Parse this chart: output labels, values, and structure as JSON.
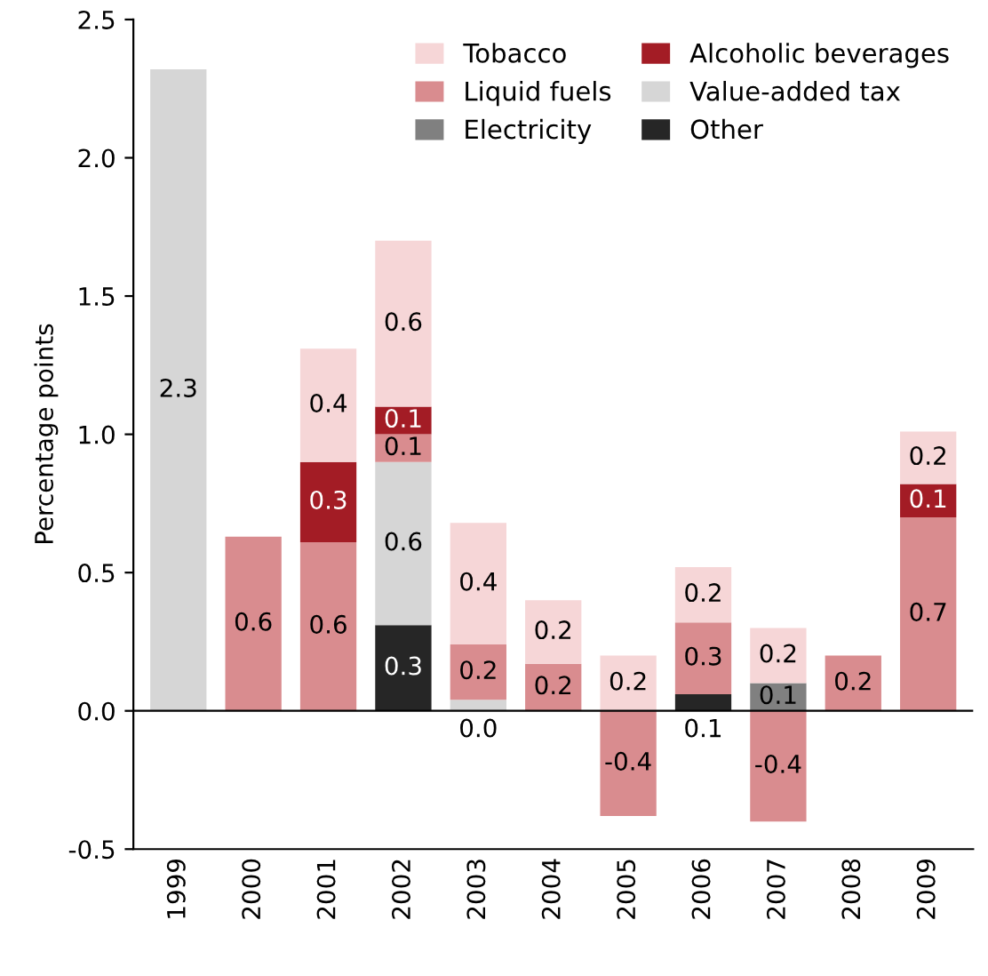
{
  "chart_data": {
    "type": "bar",
    "stacked": true,
    "ylabel": "Percentage points",
    "categories": [
      "1999",
      "2000",
      "2001",
      "2002",
      "2003",
      "2004",
      "2005",
      "2006",
      "2007",
      "2008",
      "2009"
    ],
    "ylim": [
      -0.5,
      2.5
    ],
    "yticks": [
      {
        "value": -0.5,
        "label": "-0.5"
      },
      {
        "value": 0,
        "label": "0.0"
      },
      {
        "value": 0.5,
        "label": "0.5"
      },
      {
        "value": 1,
        "label": "1.0"
      },
      {
        "value": 1.5,
        "label": "1.5"
      },
      {
        "value": 2,
        "label": "2.0"
      },
      {
        "value": 2.5,
        "label": "2.5"
      }
    ],
    "legend": "top right",
    "grid": false,
    "ref_lines": [
      {
        "axis": "y",
        "value": 0,
        "color": "#000000"
      }
    ],
    "series": [
      {
        "name": "Other",
        "color": "#262626",
        "values": [
          null,
          null,
          null,
          0.31,
          null,
          null,
          null,
          0.06,
          null,
          null,
          null
        ],
        "value_labels": [
          null,
          null,
          null,
          "0.3",
          null,
          null,
          null,
          "0.1",
          null,
          null,
          null
        ]
      },
      {
        "name": "Electricity",
        "color": "#808080",
        "values": [
          null,
          null,
          null,
          null,
          null,
          null,
          null,
          null,
          0.1,
          null,
          null
        ],
        "value_labels": [
          null,
          null,
          null,
          null,
          null,
          null,
          null,
          null,
          "0.1",
          null,
          null
        ]
      },
      {
        "name": "Value-added tax",
        "color": "#d6d6d6",
        "values": [
          2.32,
          null,
          null,
          0.59,
          0.04,
          null,
          null,
          null,
          null,
          null,
          null
        ],
        "value_labels": [
          "2.3",
          null,
          null,
          "0.6",
          "0.0",
          null,
          null,
          null,
          null,
          null,
          null
        ]
      },
      {
        "name": "Liquid fuels",
        "color": "#d98c8f",
        "values": [
          null,
          0.63,
          0.61,
          0.1,
          0.2,
          0.17,
          -0.38,
          0.26,
          -0.4,
          0.2,
          0.7
        ],
        "value_labels": [
          null,
          "0.6",
          "0.6",
          "0.1",
          "0.2",
          "0.2",
          "-0.4",
          "0.3",
          "-0.4",
          "0.2",
          "0.7"
        ]
      },
      {
        "name": "Alcoholic beverages",
        "color": "#a31c25",
        "values": [
          null,
          null,
          0.29,
          0.1,
          null,
          null,
          null,
          null,
          null,
          null,
          0.12
        ],
        "value_labels": [
          null,
          null,
          "0.3",
          "0.1",
          null,
          null,
          null,
          null,
          null,
          null,
          "0.1"
        ]
      },
      {
        "name": "Tobacco",
        "color": "#f6d6d7",
        "values": [
          null,
          null,
          0.41,
          0.6,
          0.44,
          0.23,
          0.2,
          0.2,
          0.2,
          null,
          0.19
        ],
        "value_labels": [
          null,
          null,
          "0.4",
          "0.6",
          "0.4",
          "0.2",
          "0.2",
          "0.2",
          "0.2",
          null,
          "0.2"
        ]
      }
    ]
  }
}
